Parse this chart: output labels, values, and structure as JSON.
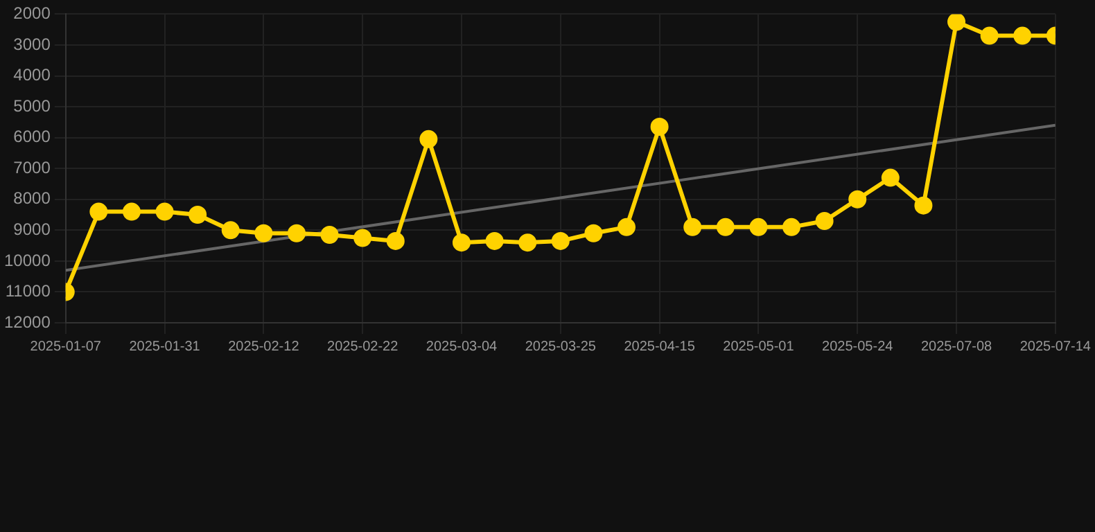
{
  "chart_data": {
    "type": "line",
    "categories": [
      "2025-01-07",
      null,
      null,
      "2025-01-31",
      null,
      null,
      "2025-02-12",
      null,
      null,
      "2025-02-22",
      null,
      null,
      "2025-03-04",
      null,
      null,
      "2025-03-25",
      null,
      null,
      "2025-04-15",
      null,
      null,
      "2025-05-01",
      null,
      null,
      "2025-05-24",
      null,
      null,
      "2025-07-08",
      null,
      null,
      "2025-07-14"
    ],
    "series": [
      {
        "color": "#ffd200",
        "values": [
          11000,
          8400,
          8400,
          8400,
          8500,
          9000,
          9100,
          9100,
          9150,
          9250,
          9350,
          6050,
          9400,
          9350,
          9400,
          9350,
          9100,
          8900,
          5650,
          8900,
          8900,
          8900,
          8900,
          8700,
          8000,
          7300,
          8200,
          2250,
          2700,
          2700,
          2700
        ]
      },
      {
        "type": "line",
        "color": "#666666",
        "marker": "none",
        "values": [
          10300,
          null,
          null,
          null,
          null,
          null,
          null,
          null,
          null,
          null,
          null,
          null,
          null,
          null,
          null,
          null,
          null,
          null,
          null,
          null,
          null,
          null,
          null,
          null,
          null,
          null,
          null,
          null,
          null,
          null,
          5600
        ]
      }
    ],
    "ylim": [
      12000,
      2000
    ],
    "yticks": [
      2000,
      3000,
      4000,
      5000,
      6000,
      7000,
      8000,
      9000,
      10000,
      11000,
      12000
    ],
    "grid": true,
    "legend": false,
    "marker": "circle",
    "line_style": "solid"
  }
}
